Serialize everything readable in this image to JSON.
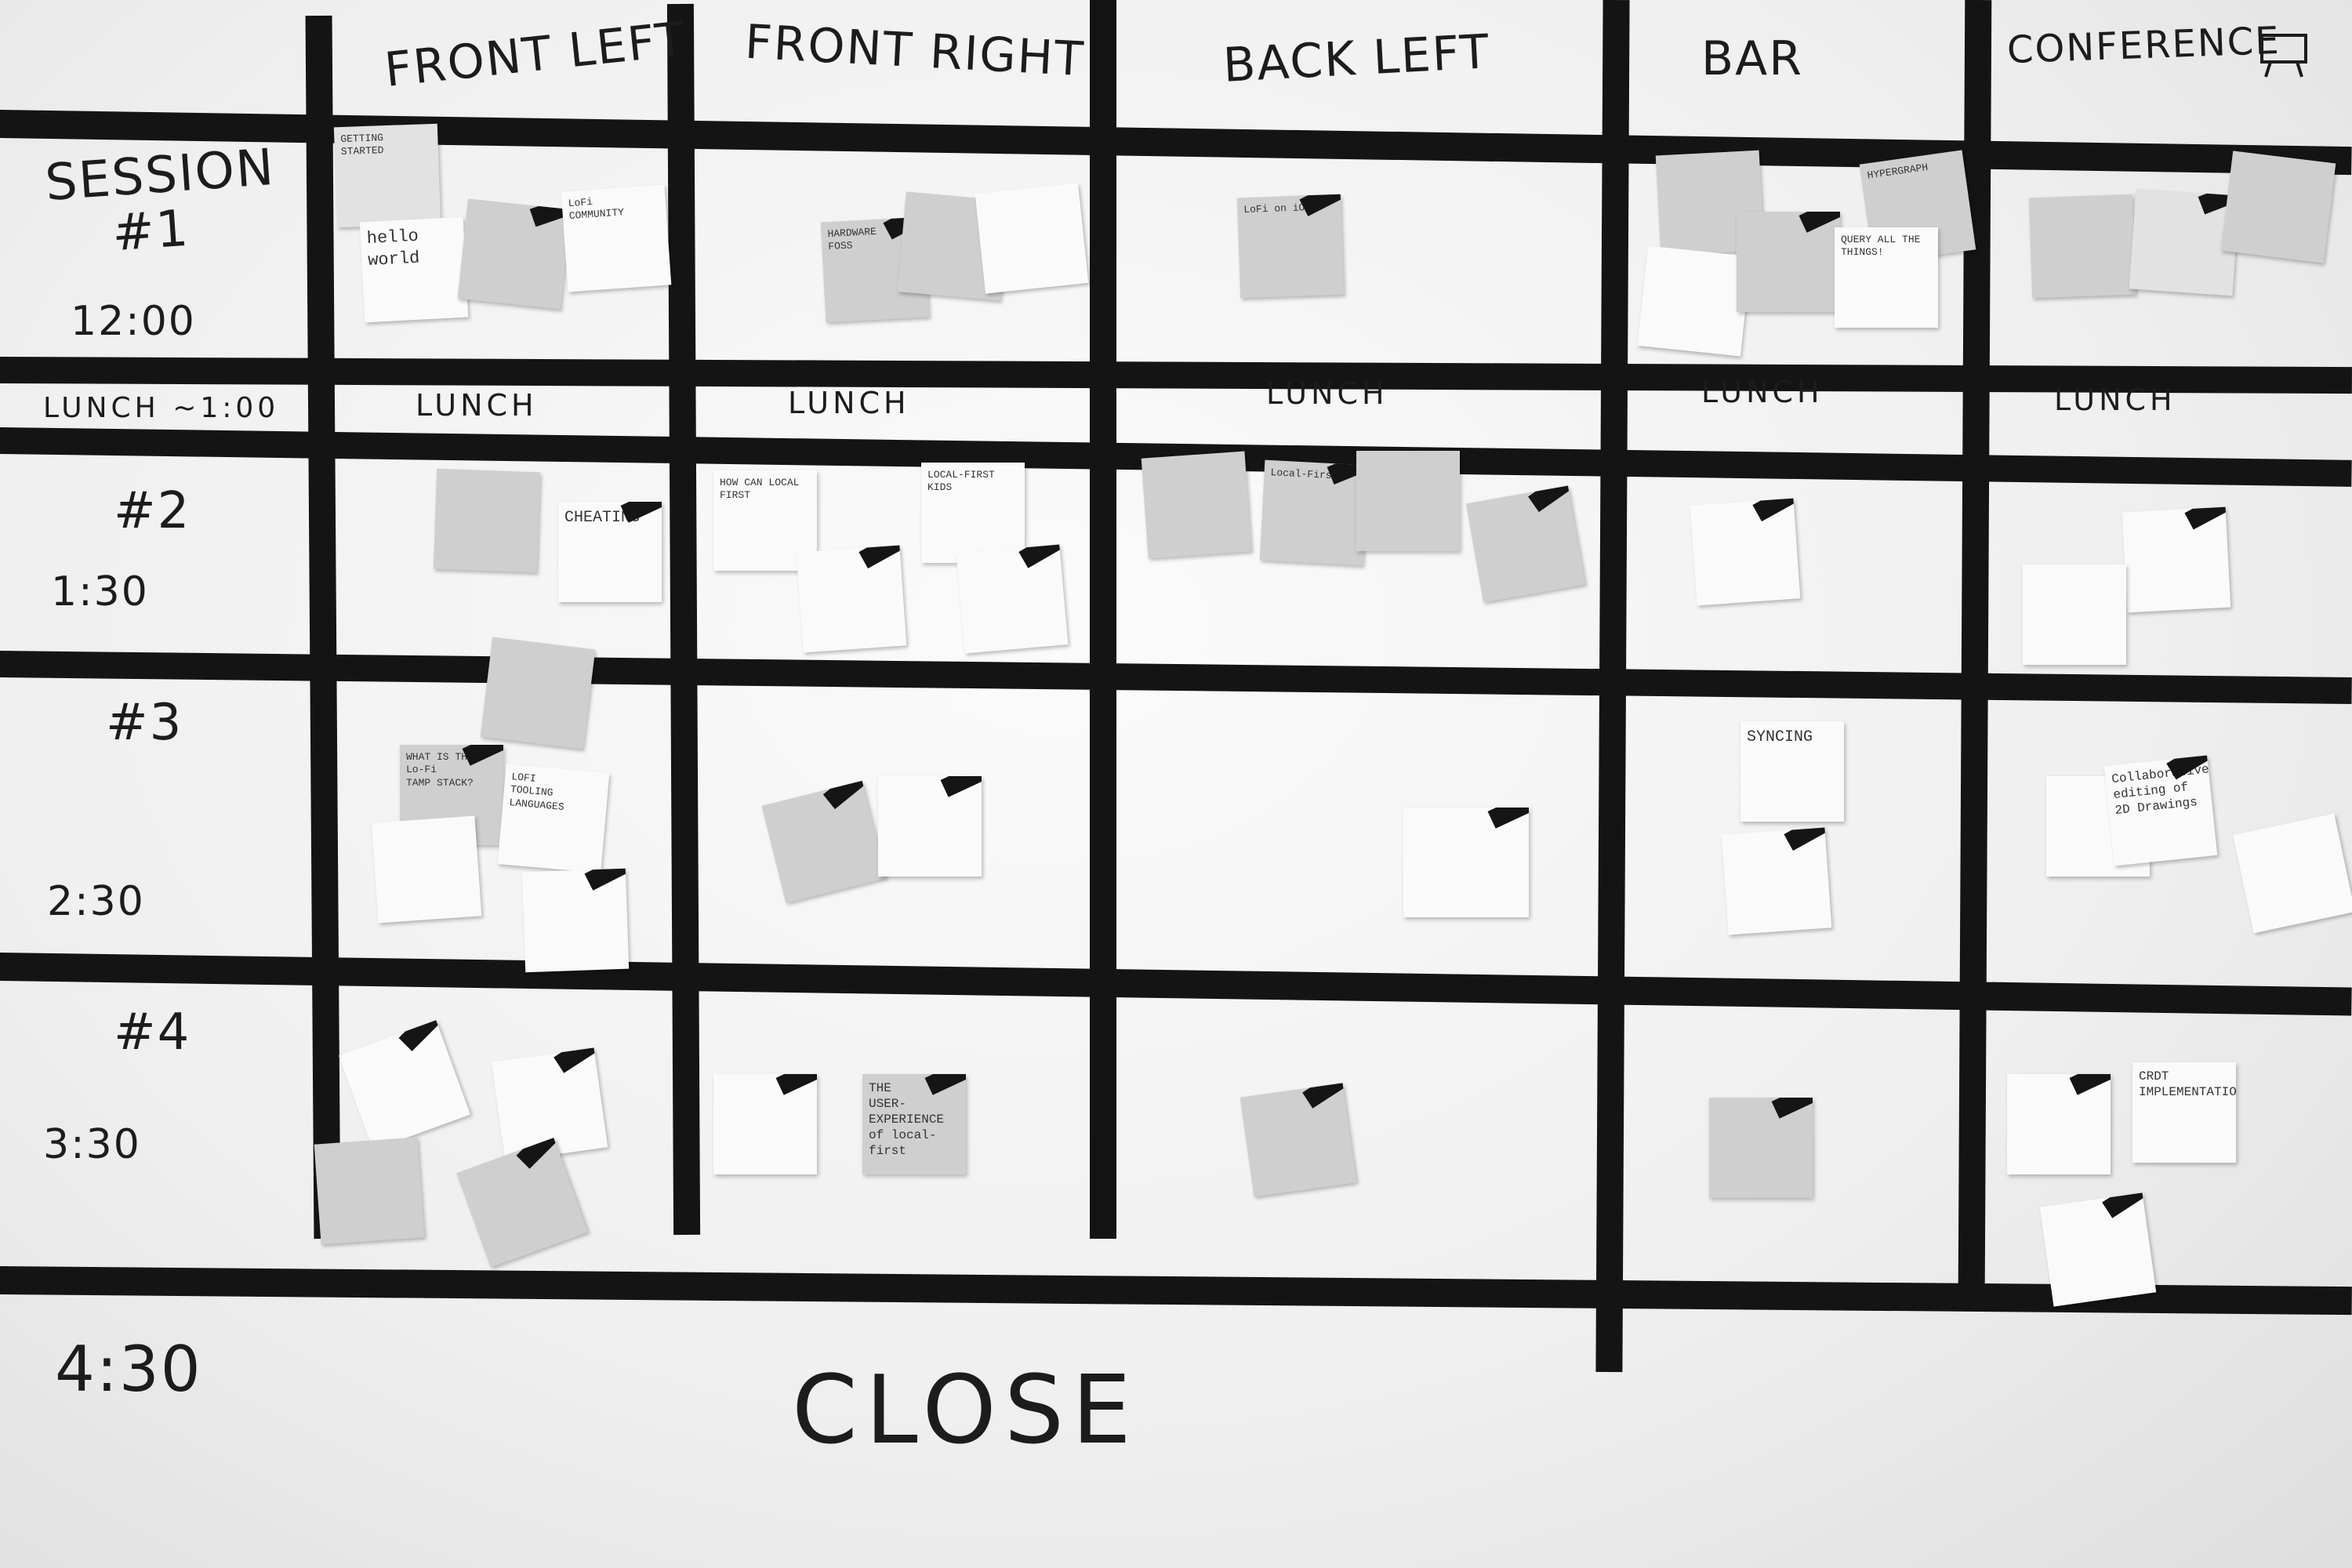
{
  "columns": [
    "FRONT LEFT",
    "FRONT RIGHT",
    "BACK LEFT",
    "BAR",
    "CONFERENCE"
  ],
  "rows": [
    {
      "label": "SESSION #1",
      "time": "12:00"
    },
    {
      "label": "#2",
      "time": "1:30"
    },
    {
      "label": "#3",
      "time": "2:30"
    },
    {
      "label": "#4",
      "time": "3:30"
    }
  ],
  "lunch_row_label": "LUNCH ~1:00",
  "lunch_cell_label": "LUNCH",
  "end_time": "4:30",
  "close_label": "CLOSE",
  "icons": {
    "screen": "projector-screen-icon"
  },
  "notes": {
    "s1_fl_a": "GETTING\nSTARTED",
    "s1_fl_b": "hello\nworld",
    "s1_fl_c": "LoFi\nCOMMUNITY",
    "s1_fr_a": "HARDWARE\nFOSS",
    "s1_bl_a": "LoFi on iOS",
    "s1_bar_a": "HYPERGRAPH",
    "s1_bar_b": "QUERY ALL THE THINGS!",
    "s2_fl_a": "CHEATING",
    "s2_fr_a": "HOW CAN LOCAL FIRST",
    "s2_fr_b": "LOCAL-FIRST\nKIDS",
    "s2_bl_a": "Local-First",
    "s3_fl_a": "WHAT IS THE\nLo-Fi\nTAMP STACK?",
    "s3_fl_b": "LOFI\nTOOLING\nLANGUAGES",
    "s3_bar_a": "SYNCING",
    "s3_cf_a": "Collaborative\nediting of\n2D Drawings",
    "s4_fr_a": "THE\nUSER-\nEXPERIENCE\nof local-first",
    "s4_cf_a": "CRDT\nIMPLEMENTATION"
  }
}
